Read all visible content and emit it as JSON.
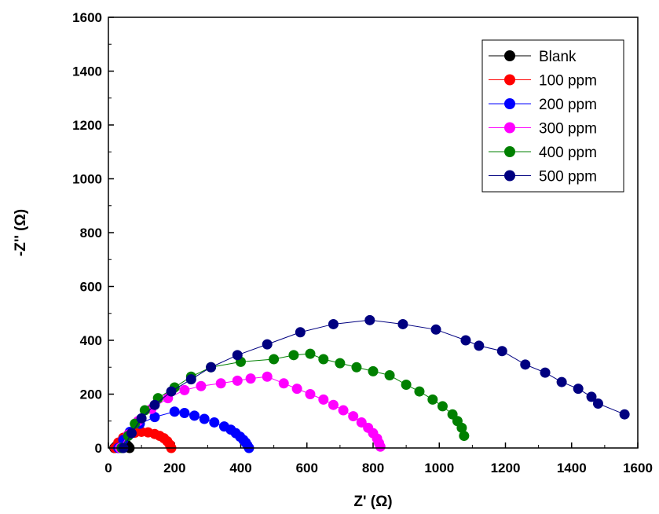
{
  "chart_data": {
    "type": "scatter",
    "xlabel": "Z' (Ω)",
    "ylabel": "-Z'' (Ω)",
    "xlim": [
      0,
      1600
    ],
    "ylim": [
      0,
      1600
    ],
    "xticks": [
      0,
      200,
      400,
      600,
      800,
      1000,
      1200,
      1400,
      1600
    ],
    "yticks": [
      0,
      200,
      400,
      600,
      800,
      1000,
      1200,
      1400,
      1600
    ],
    "legend_position": "top-right",
    "series": [
      {
        "name": "Blank",
        "color": "#000000",
        "x": [
          18,
          22,
          27,
          33,
          40,
          48,
          55,
          60,
          64
        ],
        "y": [
          0,
          5,
          10,
          14,
          16,
          15,
          12,
          6,
          0
        ]
      },
      {
        "name": "100 ppm",
        "color": "#ff0000",
        "x": [
          20,
          30,
          45,
          62,
          80,
          100,
          120,
          140,
          155,
          168,
          178,
          186,
          190
        ],
        "y": [
          0,
          20,
          38,
          50,
          57,
          60,
          58,
          52,
          45,
          36,
          25,
          12,
          0
        ]
      },
      {
        "name": "200 ppm",
        "color": "#0000ff",
        "x": [
          30,
          45,
          65,
          95,
          140,
          200,
          230,
          260,
          290,
          320,
          350,
          370,
          385,
          398,
          408,
          415,
          420,
          425
        ],
        "y": [
          0,
          30,
          60,
          90,
          115,
          135,
          130,
          120,
          108,
          95,
          80,
          68,
          55,
          42,
          30,
          20,
          10,
          0
        ]
      },
      {
        "name": "300 ppm",
        "color": "#ff00ff",
        "x": [
          35,
          60,
          90,
          130,
          180,
          230,
          280,
          340,
          390,
          430,
          480,
          530,
          570,
          610,
          650,
          680,
          710,
          740,
          765,
          785,
          800,
          812,
          818,
          822
        ],
        "y": [
          0,
          50,
          100,
          145,
          185,
          215,
          230,
          240,
          250,
          258,
          265,
          240,
          220,
          200,
          180,
          160,
          140,
          118,
          95,
          75,
          55,
          35,
          18,
          5
        ]
      },
      {
        "name": "400 ppm",
        "color": "#008000",
        "x": [
          40,
          60,
          80,
          110,
          150,
          200,
          250,
          310,
          400,
          500,
          560,
          610,
          650,
          700,
          750,
          800,
          850,
          900,
          940,
          980,
          1010,
          1040,
          1055,
          1068,
          1075
        ],
        "y": [
          0,
          45,
          90,
          140,
          185,
          225,
          265,
          300,
          320,
          330,
          345,
          350,
          330,
          315,
          300,
          285,
          270,
          235,
          210,
          180,
          155,
          125,
          100,
          75,
          45
        ]
      },
      {
        "name": "500 ppm",
        "color": "#000080",
        "x": [
          45,
          70,
          100,
          140,
          190,
          250,
          310,
          390,
          480,
          580,
          680,
          790,
          890,
          990,
          1080,
          1120,
          1190,
          1260,
          1320,
          1370,
          1420,
          1460,
          1480,
          1560
        ],
        "y": [
          0,
          55,
          110,
          160,
          210,
          255,
          300,
          345,
          385,
          430,
          460,
          475,
          460,
          440,
          400,
          380,
          360,
          310,
          280,
          245,
          220,
          190,
          165,
          125
        ]
      }
    ]
  }
}
